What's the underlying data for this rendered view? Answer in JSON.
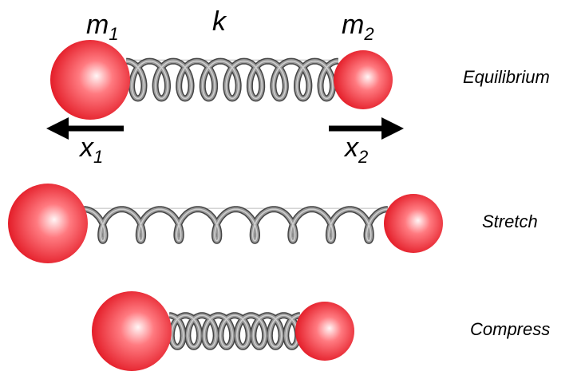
{
  "labels": {
    "m1": {
      "symbol": "m",
      "subscript": "1"
    },
    "k": "k",
    "m2": {
      "symbol": "m",
      "subscript": "2"
    },
    "x1": {
      "symbol": "x",
      "subscript": "1"
    },
    "x2": {
      "symbol": "x",
      "subscript": "2"
    }
  },
  "states": [
    "Equilibrium",
    "Stretch",
    "Compress"
  ]
}
